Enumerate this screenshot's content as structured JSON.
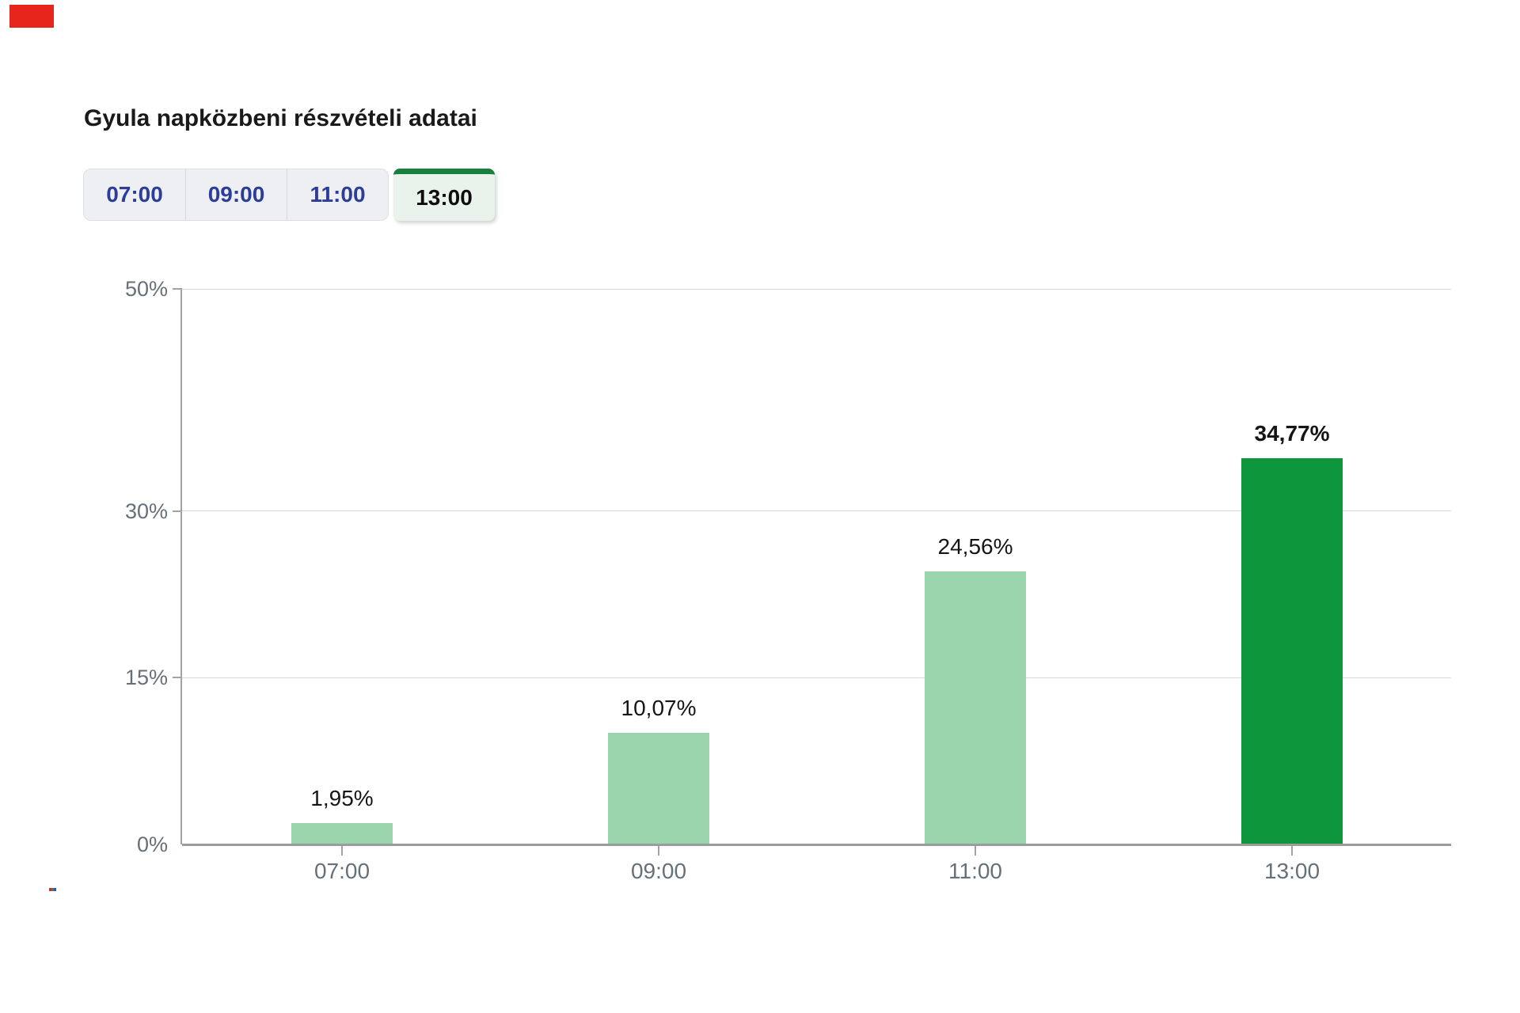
{
  "title": "Gyula napközbeni részvételi adatai",
  "tabs": {
    "items": [
      {
        "label": "07:00",
        "selected": false
      },
      {
        "label": "09:00",
        "selected": false
      },
      {
        "label": "11:00",
        "selected": false
      },
      {
        "label": "13:00",
        "selected": true
      }
    ]
  },
  "chart_data": {
    "type": "bar",
    "title": "Gyula napközbeni részvételi adatai",
    "categories": [
      "07:00",
      "09:00",
      "11:00",
      "13:00"
    ],
    "values": [
      1.95,
      10.07,
      24.56,
      34.77
    ],
    "value_labels": [
      "1,95%",
      "10,07%",
      "24,56%",
      "34,77%"
    ],
    "highlighted_index": 3,
    "highlighted_category": "13:00",
    "xlabel": "",
    "ylabel": "",
    "ylim": [
      0,
      50
    ],
    "yticks": [
      0,
      15,
      30,
      50
    ],
    "ytick_labels": [
      "0%",
      "15%",
      "30%",
      "50%"
    ],
    "grid": true,
    "legend": false,
    "bar_color": "#9bd5ad",
    "highlight_color": "#0e963c"
  },
  "colors": {
    "annotation_marker": "#e8251d",
    "tab_text_inactive": "#2b3c99",
    "tab_text_selected": "#0d0d0d",
    "tab_bg_inactive": "#edeff2",
    "tab_bg_selected": "#e9f3ec",
    "tab_selected_top_bar": "#17803c",
    "axis_text": "#66707a",
    "gridline": "#d8d8d8",
    "axis_line": "#a3a3a3"
  }
}
